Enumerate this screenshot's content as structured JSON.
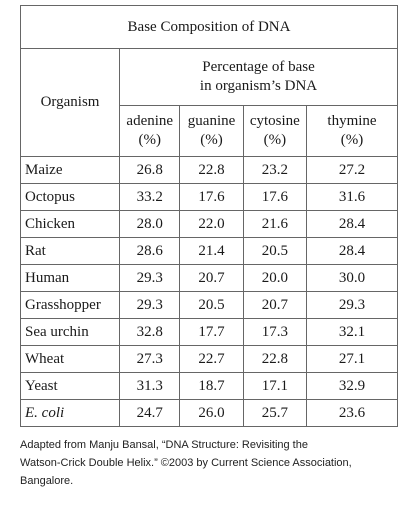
{
  "table": {
    "title": "Base Composition of DNA",
    "group_header": [
      "Percentage of base",
      "in organism’s DNA"
    ],
    "row_header": "Organism",
    "columns": [
      {
        "name": "adenine",
        "unit": "(%)"
      },
      {
        "name": "guanine",
        "unit": "(%)"
      },
      {
        "name": "cytosine",
        "unit": "(%)"
      },
      {
        "name": "thymine",
        "unit": "(%)"
      }
    ],
    "rows": [
      [
        "Maize",
        "26.8",
        "22.8",
        "23.2",
        "27.2"
      ],
      [
        "Octopus",
        "33.2",
        "17.6",
        "17.6",
        "31.6"
      ],
      [
        "Chicken",
        "28.0",
        "22.0",
        "21.6",
        "28.4"
      ],
      [
        "Rat",
        "28.6",
        "21.4",
        "20.5",
        "28.4"
      ],
      [
        "Human",
        "29.3",
        "20.7",
        "20.0",
        "30.0"
      ],
      [
        "Grasshopper",
        "29.3",
        "20.5",
        "20.7",
        "29.3"
      ],
      [
        "Sea urchin",
        "32.8",
        "17.7",
        "17.3",
        "32.1"
      ],
      [
        "Wheat",
        "27.3",
        "22.7",
        "22.8",
        "27.1"
      ],
      [
        "Yeast",
        "31.3",
        "18.7",
        "17.1",
        "32.9"
      ],
      [
        "E. coli",
        "24.7",
        "26.0",
        "25.7",
        "23.6"
      ]
    ],
    "italic_rows": [
      9
    ]
  },
  "caption": [
    "Adapted from Manju Bansal, “DNA Structure: Revisiting the",
    "Watson-Crick Double Helix.” ©2003 by Current Science Association,",
    "Bangalore."
  ]
}
